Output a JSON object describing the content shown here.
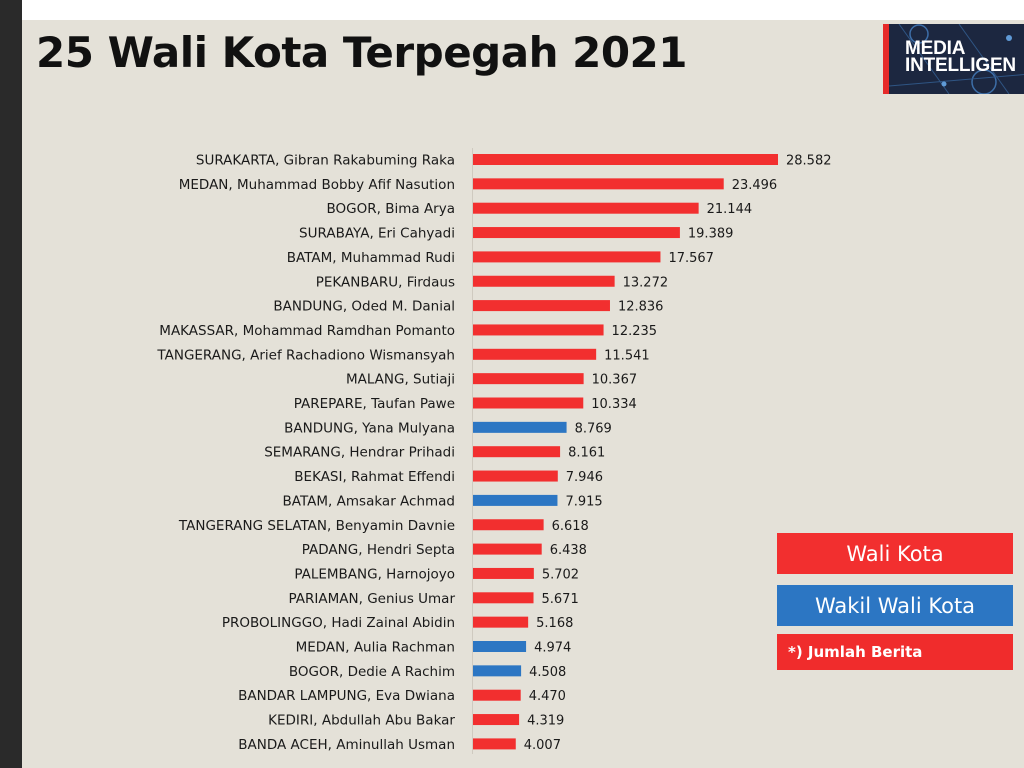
{
  "colors": {
    "wali_kota": "#f22f2f",
    "wakil_wali_kota": "#2c76c3",
    "background": "#e4e1d8"
  },
  "logo": {
    "line1": "MEDIA",
    "line2": "INTELLIGEN"
  },
  "legend": {
    "wali_kota": "Wali Kota",
    "wakil_wali_kota": "Wakil Wali Kota",
    "note": "*) Jumlah Berita"
  },
  "chart_data": {
    "type": "bar",
    "orientation": "horizontal",
    "title": "25 Wali Kota Terpegah 2021",
    "xlabel": "",
    "ylabel": "",
    "grid": false,
    "legend_placement": "bottom-right",
    "xlim": [
      0,
      28582
    ],
    "categories": [
      "SURAKARTA, Gibran Rakabuming Raka",
      "MEDAN, Muhammad Bobby Afif Nasution",
      "BOGOR, Bima Arya",
      "SURABAYA, Eri Cahyadi",
      "BATAM, Muhammad Rudi",
      "PEKANBARU, Firdaus",
      "BANDUNG, Oded M. Danial",
      "MAKASSAR, Mohammad Ramdhan Pomanto",
      "TANGERANG, Arief Rachadiono Wismansyah",
      "MALANG, Sutiaji",
      "PAREPARE, Taufan Pawe",
      "BANDUNG, Yana Mulyana",
      "SEMARANG, Hendrar Prihadi",
      "BEKASI, Rahmat Effendi",
      "BATAM, Amsakar Achmad",
      "TANGERANG SELATAN, Benyamin Davnie",
      "PADANG, Hendri Septa",
      "PALEMBANG, Harnojoyo",
      "PARIAMAN, Genius Umar",
      "PROBOLINGGO, Hadi Zainal Abidin",
      "MEDAN, Aulia Rachman",
      "BOGOR, Dedie A Rachim",
      "BANDAR LAMPUNG, Eva Dwiana",
      "KEDIRI, Abdullah Abu Bakar",
      "BANDA ACEH, Aminullah Usman"
    ],
    "values": [
      28582,
      23496,
      21144,
      19389,
      17567,
      13272,
      12836,
      12235,
      11541,
      10367,
      10334,
      8769,
      8161,
      7946,
      7915,
      6618,
      6438,
      5702,
      5671,
      5168,
      4974,
      4508,
      4470,
      4319,
      4007
    ],
    "value_labels": [
      "28.582",
      "23.496",
      "21.144",
      "19.389",
      "17.567",
      "13.272",
      "12.836",
      "12.235",
      "11.541",
      "10.367",
      "10.334",
      "8.769",
      "8.161",
      "7.946",
      "7.915",
      "6.618",
      "6.438",
      "5.702",
      "5.671",
      "5.168",
      "4.974",
      "4.508",
      "4.470",
      "4.319",
      "4.007"
    ],
    "roles": [
      "wali_kota",
      "wali_kota",
      "wali_kota",
      "wali_kota",
      "wali_kota",
      "wali_kota",
      "wali_kota",
      "wali_kota",
      "wali_kota",
      "wali_kota",
      "wali_kota",
      "wakil_wali_kota",
      "wali_kota",
      "wali_kota",
      "wakil_wali_kota",
      "wali_kota",
      "wali_kota",
      "wali_kota",
      "wali_kota",
      "wali_kota",
      "wakil_wali_kota",
      "wakil_wali_kota",
      "wali_kota",
      "wali_kota",
      "wali_kota"
    ]
  }
}
